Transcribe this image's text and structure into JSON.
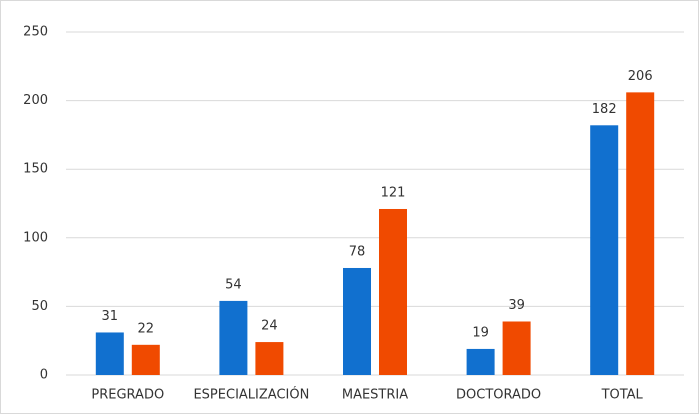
{
  "chart_data": {
    "type": "bar",
    "categories": [
      "PREGRADO",
      "ESPECIALIZACIÓN",
      "MAESTRIA",
      "DOCTORADO",
      "TOTAL"
    ],
    "series": [
      {
        "color": "#1170cf",
        "values": [
          31,
          54,
          78,
          19,
          182
        ]
      },
      {
        "color": "#f04a00",
        "values": [
          22,
          24,
          121,
          39,
          206
        ]
      }
    ],
    "ylim": [
      0,
      250
    ],
    "yticks": [
      0,
      50,
      100,
      150,
      200,
      250
    ],
    "grid": true,
    "data_labels": true
  }
}
